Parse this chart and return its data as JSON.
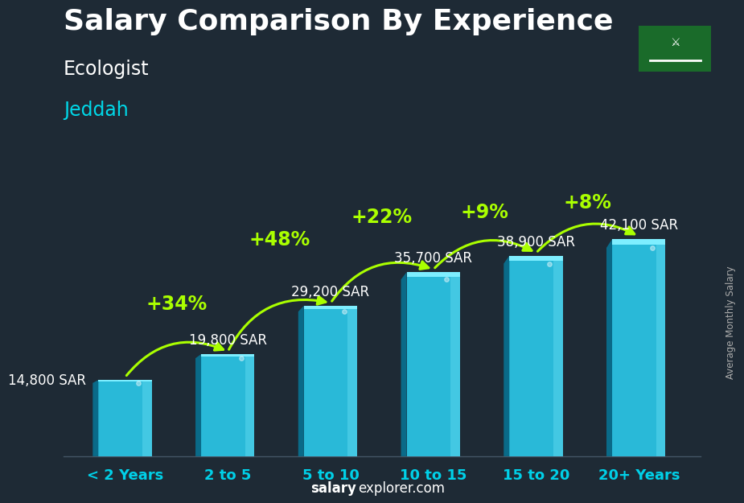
{
  "title": "Salary Comparison By Experience",
  "subtitle1": "Ecologist",
  "subtitle2": "Jeddah",
  "categories": [
    "< 2 Years",
    "2 to 5",
    "5 to 10",
    "10 to 15",
    "15 to 20",
    "20+ Years"
  ],
  "values": [
    14800,
    19800,
    29200,
    35700,
    38900,
    42100
  ],
  "labels": [
    "14,800 SAR",
    "19,800 SAR",
    "29,200 SAR",
    "35,700 SAR",
    "38,900 SAR",
    "42,100 SAR"
  ],
  "pct_labels": [
    "+34%",
    "+48%",
    "+22%",
    "+9%",
    "+8%"
  ],
  "bar_color_main": "#29b9d8",
  "bar_color_light": "#5dd8ee",
  "bar_color_dark": "#0a6a88",
  "bar_color_top": "#7eeeff",
  "background_color": "#1e2a35",
  "title_color": "#ffffff",
  "subtitle1_color": "#ffffff",
  "subtitle2_color": "#00d8e8",
  "label_color": "#ffffff",
  "pct_color": "#aaff00",
  "xlabel_color": "#00d0e8",
  "ylabel_text": "Average Monthly Salary",
  "footer_salary": "salary",
  "footer_rest": "explorer.com",
  "ylim_max": 52000,
  "title_fontsize": 26,
  "subtitle1_fontsize": 17,
  "subtitle2_fontsize": 17,
  "label_fontsize": 12,
  "pct_fontsize": 17,
  "xlabel_fontsize": 13,
  "bar_width": 0.52
}
